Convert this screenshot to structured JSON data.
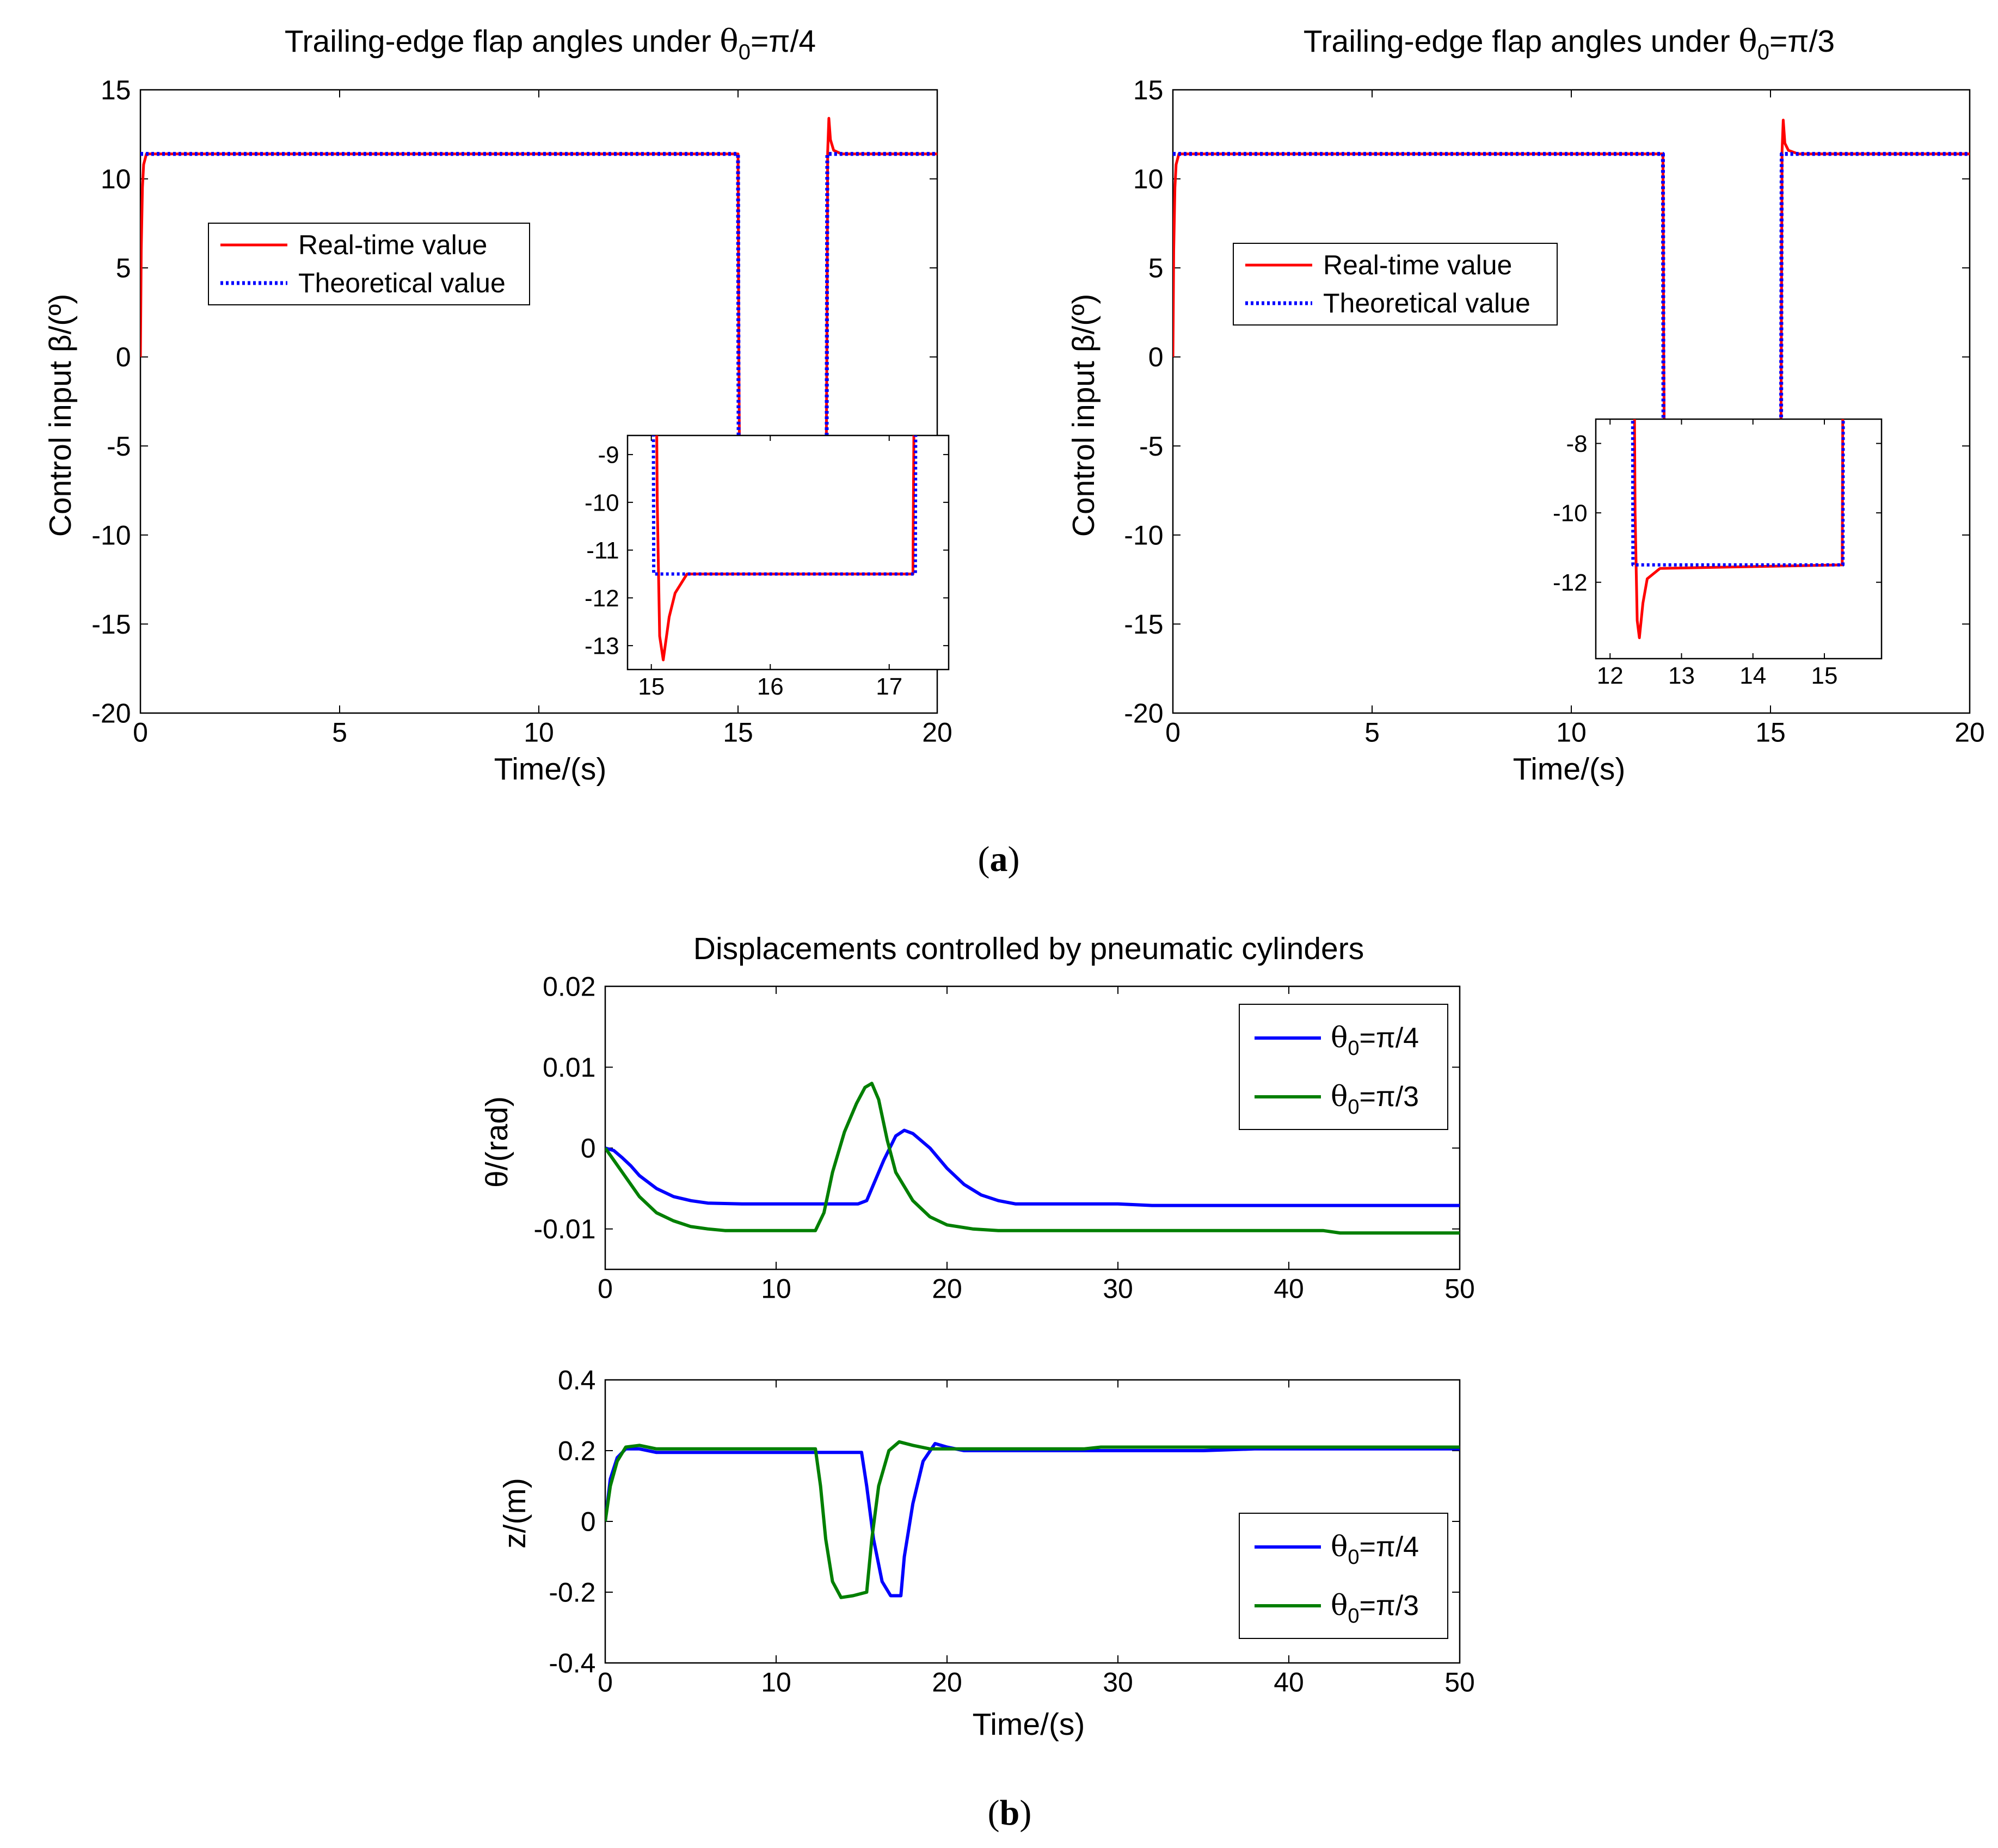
{
  "figure": {
    "panel_a_label": "a",
    "panel_b_label": "b"
  },
  "colors": {
    "realtime": "#ff0000",
    "theoretical": "#0000ff",
    "theta_pi4": "#0000ff",
    "theta_pi3": "#007f00"
  },
  "chart_data": [
    {
      "id": "a-left",
      "type": "line",
      "title_main": "Trailing-edge flap angles under ",
      "title_theta": "θ",
      "title_sub": "0",
      "title_tail": "=π/4",
      "xlabel": "Time/(s)",
      "ylabel": "Control input β/(º)",
      "xlim": [
        0,
        20
      ],
      "ylim": [
        -20,
        15
      ],
      "xticks": [
        0,
        5,
        10,
        15,
        20
      ],
      "yticks": [
        15,
        10,
        5,
        0,
        -5,
        -10,
        -15,
        -20
      ],
      "legend": [
        "Real-time value",
        "Theoretical value"
      ],
      "legend_position": "upper-left",
      "series": [
        {
          "name": "Real-time value",
          "style": "solid",
          "color": "realtime",
          "points": [
            [
              0,
              0
            ],
            [
              0.02,
              6
            ],
            [
              0.05,
              9.5
            ],
            [
              0.08,
              10.8
            ],
            [
              0.15,
              11.4
            ],
            [
              15.0,
              11.4
            ],
            [
              15.02,
              0
            ],
            [
              15.05,
              -10
            ],
            [
              15.07,
              -12.8
            ],
            [
              15.1,
              -13.3
            ],
            [
              15.15,
              -12.4
            ],
            [
              15.2,
              -11.9
            ],
            [
              15.3,
              -11.5
            ],
            [
              17.2,
              -11.5
            ],
            [
              17.23,
              0
            ],
            [
              17.25,
              11.5
            ],
            [
              17.28,
              13.4
            ],
            [
              17.32,
              12.2
            ],
            [
              17.4,
              11.6
            ],
            [
              17.6,
              11.4
            ],
            [
              20,
              11.4
            ]
          ]
        },
        {
          "name": "Theoretical value",
          "style": "dotted",
          "color": "theoretical",
          "points": [
            [
              0,
              11.4
            ],
            [
              15.0,
              11.4
            ],
            [
              15.02,
              -11.5
            ],
            [
              17.22,
              -11.5
            ],
            [
              17.24,
              11.4
            ],
            [
              20,
              11.4
            ]
          ]
        }
      ],
      "inset": {
        "xlim": [
          14.8,
          17.5
        ],
        "ylim": [
          -13.5,
          -8.6
        ],
        "xticks": [
          15,
          16,
          17
        ],
        "yticks": [
          -9,
          -10,
          -11,
          -12,
          -13
        ]
      }
    },
    {
      "id": "a-right",
      "type": "line",
      "title_main": "Trailing-edge flap angles under ",
      "title_theta": "θ",
      "title_sub": "0",
      "title_tail": "=π/3",
      "xlabel": "Time/(s)",
      "ylabel": "Control input β/(º)",
      "xlim": [
        0,
        20
      ],
      "ylim": [
        -20,
        15
      ],
      "xticks": [
        0,
        5,
        10,
        15,
        20
      ],
      "yticks": [
        15,
        10,
        5,
        0,
        -5,
        -10,
        -15,
        -20
      ],
      "legend": [
        "Real-time value",
        "Theoretical value"
      ],
      "legend_position": "upper-left",
      "series": [
        {
          "name": "Real-time value",
          "style": "solid",
          "color": "realtime",
          "points": [
            [
              0,
              0
            ],
            [
              0.02,
              6
            ],
            [
              0.05,
              9.5
            ],
            [
              0.08,
              10.8
            ],
            [
              0.15,
              11.4
            ],
            [
              12.3,
              11.4
            ],
            [
              12.32,
              0
            ],
            [
              12.35,
              -10
            ],
            [
              12.38,
              -13.1
            ],
            [
              12.41,
              -13.6
            ],
            [
              12.46,
              -12.6
            ],
            [
              12.52,
              -11.9
            ],
            [
              12.7,
              -11.6
            ],
            [
              15.25,
              -11.5
            ],
            [
              15.27,
              0
            ],
            [
              15.29,
              11.5
            ],
            [
              15.32,
              13.3
            ],
            [
              15.36,
              12.0
            ],
            [
              15.45,
              11.6
            ],
            [
              15.7,
              11.4
            ],
            [
              20,
              11.4
            ]
          ]
        },
        {
          "name": "Theoretical value",
          "style": "dotted",
          "color": "theoretical",
          "points": [
            [
              0,
              11.4
            ],
            [
              12.3,
              11.4
            ],
            [
              12.32,
              -11.5
            ],
            [
              15.26,
              -11.5
            ],
            [
              15.28,
              11.4
            ],
            [
              20,
              11.4
            ]
          ]
        }
      ],
      "inset": {
        "xlim": [
          11.8,
          15.8
        ],
        "ylim": [
          -14.2,
          -7.3
        ],
        "xticks": [
          12,
          13,
          14,
          15
        ],
        "yticks": [
          -8,
          -10,
          -12
        ]
      }
    },
    {
      "id": "b-top",
      "type": "line",
      "title": "Displacements controlled by pneumatic cylinders",
      "xlabel": "",
      "ylabel": "θ/(rad)",
      "xlim": [
        0,
        50
      ],
      "ylim": [
        -0.015,
        0.02
      ],
      "xticks": [
        0,
        10,
        20,
        30,
        40,
        50
      ],
      "yticks": [
        0.02,
        0.01,
        0,
        -0.01
      ],
      "ytick_labels": [
        "0.02",
        "0.01",
        "0",
        "-0.01"
      ],
      "legend_position": "upper-right",
      "series": [
        {
          "name_theta": "θ",
          "name_sub": "0",
          "name_tail": "=π/4",
          "color": "theta_pi4",
          "points": [
            [
              0,
              0
            ],
            [
              0.5,
              -0.0003
            ],
            [
              1,
              -0.0012
            ],
            [
              1.5,
              -0.0022
            ],
            [
              2,
              -0.0034
            ],
            [
              3,
              -0.005
            ],
            [
              4,
              -0.006
            ],
            [
              5,
              -0.0065
            ],
            [
              6,
              -0.0068
            ],
            [
              8,
              -0.0069
            ],
            [
              10,
              -0.0069
            ],
            [
              14.8,
              -0.0069
            ],
            [
              15.3,
              -0.0065
            ],
            [
              15.8,
              -0.004
            ],
            [
              16.3,
              -0.0015
            ],
            [
              17,
              0.0015
            ],
            [
              17.5,
              0.0022
            ],
            [
              18,
              0.0018
            ],
            [
              19,
              0.0
            ],
            [
              20,
              -0.0025
            ],
            [
              21,
              -0.0045
            ],
            [
              22,
              -0.0058
            ],
            [
              23,
              -0.0065
            ],
            [
              24,
              -0.0069
            ],
            [
              30,
              -0.0069
            ],
            [
              32,
              -0.0071
            ],
            [
              50,
              -0.0071
            ]
          ]
        },
        {
          "name_theta": "θ",
          "name_sub": "0",
          "name_tail": "=π/3",
          "color": "theta_pi3",
          "points": [
            [
              0,
              0
            ],
            [
              0.5,
              -0.0015
            ],
            [
              1,
              -0.003
            ],
            [
              1.5,
              -0.0045
            ],
            [
              2,
              -0.006
            ],
            [
              3,
              -0.008
            ],
            [
              4,
              -0.009
            ],
            [
              5,
              -0.0097
            ],
            [
              6,
              -0.01
            ],
            [
              7,
              -0.0102
            ],
            [
              12.3,
              -0.0102
            ],
            [
              12.8,
              -0.008
            ],
            [
              13.3,
              -0.003
            ],
            [
              14,
              0.002
            ],
            [
              14.7,
              0.0055
            ],
            [
              15.2,
              0.0075
            ],
            [
              15.6,
              0.008
            ],
            [
              16,
              0.006
            ],
            [
              16.5,
              0.001
            ],
            [
              17,
              -0.003
            ],
            [
              18,
              -0.0065
            ],
            [
              19,
              -0.0085
            ],
            [
              20,
              -0.0095
            ],
            [
              21.5,
              -0.01
            ],
            [
              23,
              -0.0102
            ],
            [
              42,
              -0.0102
            ],
            [
              43,
              -0.0105
            ],
            [
              50,
              -0.0105
            ]
          ]
        }
      ]
    },
    {
      "id": "b-bottom",
      "type": "line",
      "xlabel": "Time/(s)",
      "ylabel": "z/(m)",
      "xlim": [
        0,
        50
      ],
      "ylim": [
        -0.4,
        0.4
      ],
      "xticks": [
        0,
        10,
        20,
        30,
        40,
        50
      ],
      "yticks": [
        0.4,
        0.2,
        0,
        -0.2,
        -0.4
      ],
      "ytick_labels": [
        "0.4",
        "0.2",
        "0",
        "-0.2",
        "-0.4"
      ],
      "legend_position": "lower-right",
      "series": [
        {
          "name_theta": "θ",
          "name_sub": "0",
          "name_tail": "=π/4",
          "color": "theta_pi4",
          "points": [
            [
              0,
              0
            ],
            [
              0.3,
              0.12
            ],
            [
              0.7,
              0.18
            ],
            [
              1.2,
              0.205
            ],
            [
              2,
              0.205
            ],
            [
              3,
              0.195
            ],
            [
              15.0,
              0.195
            ],
            [
              15.3,
              0.1
            ],
            [
              15.7,
              -0.05
            ],
            [
              16.2,
              -0.17
            ],
            [
              16.7,
              -0.21
            ],
            [
              17.3,
              -0.21
            ],
            [
              17.5,
              -0.1
            ],
            [
              18.0,
              0.05
            ],
            [
              18.6,
              0.17
            ],
            [
              19.3,
              0.22
            ],
            [
              20,
              0.21
            ],
            [
              21,
              0.2
            ],
            [
              35,
              0.2
            ],
            [
              38,
              0.205
            ],
            [
              50,
              0.205
            ]
          ]
        },
        {
          "name_theta": "θ",
          "name_sub": "0",
          "name_tail": "=π/3",
          "color": "theta_pi3",
          "points": [
            [
              0,
              0
            ],
            [
              0.3,
              0.1
            ],
            [
              0.7,
              0.17
            ],
            [
              1.2,
              0.21
            ],
            [
              2,
              0.215
            ],
            [
              3,
              0.205
            ],
            [
              12.3,
              0.205
            ],
            [
              12.6,
              0.1
            ],
            [
              12.9,
              -0.05
            ],
            [
              13.3,
              -0.17
            ],
            [
              13.8,
              -0.215
            ],
            [
              14.5,
              -0.21
            ],
            [
              15.3,
              -0.2
            ],
            [
              15.6,
              -0.05
            ],
            [
              16.0,
              0.1
            ],
            [
              16.6,
              0.2
            ],
            [
              17.2,
              0.225
            ],
            [
              18,
              0.215
            ],
            [
              19,
              0.205
            ],
            [
              28,
              0.205
            ],
            [
              29,
              0.21
            ],
            [
              50,
              0.21
            ]
          ]
        }
      ]
    }
  ]
}
